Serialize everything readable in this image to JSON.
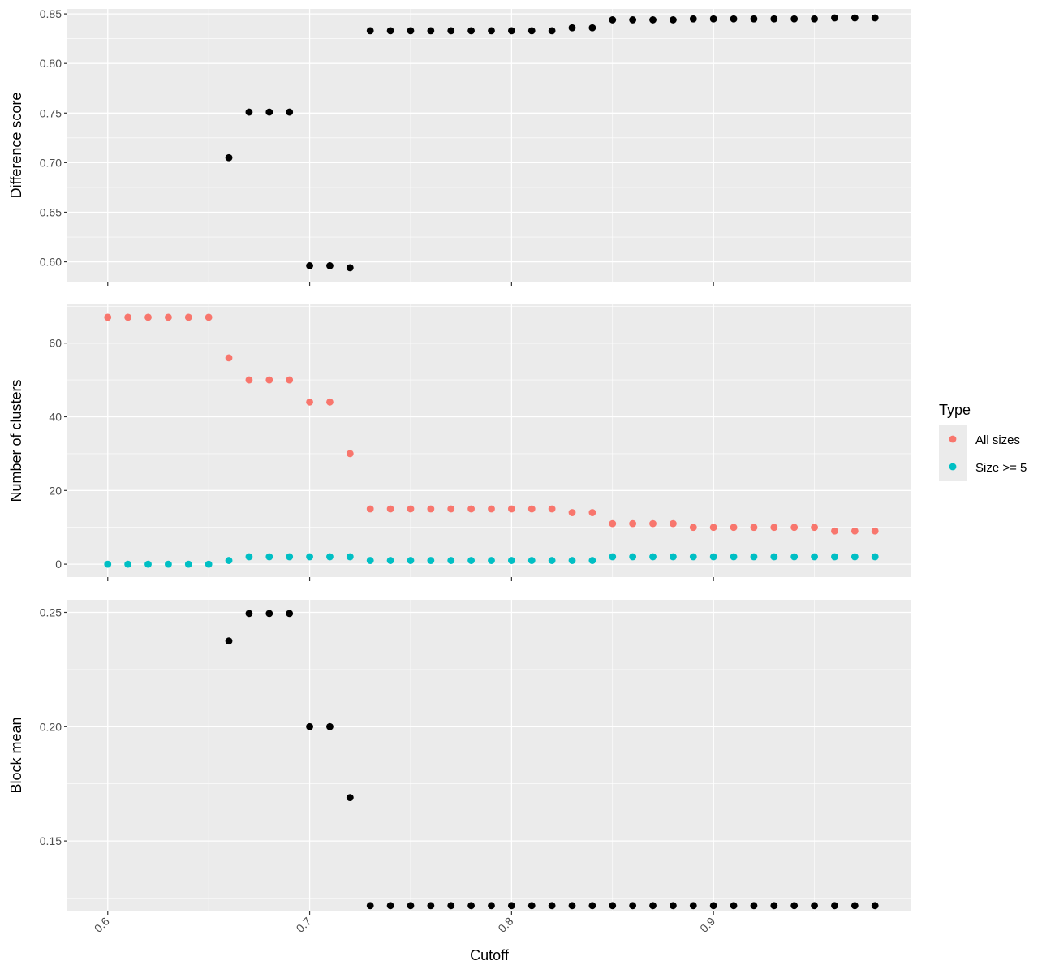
{
  "chart_data": {
    "type": "scatter",
    "x_label": "Cutoff",
    "x_range": [
      0.58,
      0.998
    ],
    "x_ticks": [
      0.6,
      0.7,
      0.8,
      0.9
    ],
    "x_tick_labels": [
      "0.6",
      "0.7",
      "0.8",
      "0.9"
    ],
    "legend": {
      "title": "Type",
      "position": "right",
      "entries": [
        {
          "label": "All sizes",
          "color": "#F8766D"
        },
        {
          "label": "Size >= 5",
          "color": "#00BFC4"
        }
      ]
    },
    "panels": [
      {
        "id": "difference",
        "ylabel": "Difference score",
        "ylim": [
          0.58,
          0.855
        ],
        "y_ticks": [
          0.6,
          0.65,
          0.7,
          0.75,
          0.8,
          0.85
        ],
        "y_tick_labels": [
          "0.60",
          "0.65",
          "0.70",
          "0.75",
          "0.80",
          "0.85"
        ],
        "series": [
          {
            "color": "#000000",
            "points": [
              [
                0.66,
                0.705
              ],
              [
                0.67,
                0.751
              ],
              [
                0.68,
                0.751
              ],
              [
                0.69,
                0.751
              ],
              [
                0.7,
                0.596
              ],
              [
                0.71,
                0.596
              ],
              [
                0.72,
                0.594
              ],
              [
                0.73,
                0.833
              ],
              [
                0.74,
                0.833
              ],
              [
                0.75,
                0.833
              ],
              [
                0.76,
                0.833
              ],
              [
                0.77,
                0.833
              ],
              [
                0.78,
                0.833
              ],
              [
                0.79,
                0.833
              ],
              [
                0.8,
                0.833
              ],
              [
                0.81,
                0.833
              ],
              [
                0.82,
                0.833
              ],
              [
                0.83,
                0.836
              ],
              [
                0.84,
                0.836
              ],
              [
                0.85,
                0.844
              ],
              [
                0.86,
                0.844
              ],
              [
                0.87,
                0.844
              ],
              [
                0.88,
                0.844
              ],
              [
                0.89,
                0.845
              ],
              [
                0.9,
                0.845
              ],
              [
                0.91,
                0.845
              ],
              [
                0.92,
                0.845
              ],
              [
                0.93,
                0.845
              ],
              [
                0.94,
                0.845
              ],
              [
                0.95,
                0.845
              ],
              [
                0.96,
                0.846
              ],
              [
                0.97,
                0.846
              ],
              [
                0.98,
                0.846
              ]
            ]
          }
        ]
      },
      {
        "id": "clusters",
        "ylabel": "Number of clusters",
        "ylim": [
          -3.5,
          70.5
        ],
        "y_ticks": [
          0,
          20,
          40,
          60
        ],
        "y_tick_labels": [
          "0",
          "20",
          "40",
          "60"
        ],
        "series": [
          {
            "name": "All sizes",
            "color": "#F8766D",
            "points": [
              [
                0.6,
                67
              ],
              [
                0.61,
                67
              ],
              [
                0.62,
                67
              ],
              [
                0.63,
                67
              ],
              [
                0.64,
                67
              ],
              [
                0.65,
                67
              ],
              [
                0.66,
                56
              ],
              [
                0.67,
                50
              ],
              [
                0.68,
                50
              ],
              [
                0.69,
                50
              ],
              [
                0.7,
                44
              ],
              [
                0.71,
                44
              ],
              [
                0.72,
                30
              ],
              [
                0.73,
                15
              ],
              [
                0.74,
                15
              ],
              [
                0.75,
                15
              ],
              [
                0.76,
                15
              ],
              [
                0.77,
                15
              ],
              [
                0.78,
                15
              ],
              [
                0.79,
                15
              ],
              [
                0.8,
                15
              ],
              [
                0.81,
                15
              ],
              [
                0.82,
                15
              ],
              [
                0.83,
                14
              ],
              [
                0.84,
                14
              ],
              [
                0.85,
                11
              ],
              [
                0.86,
                11
              ],
              [
                0.87,
                11
              ],
              [
                0.88,
                11
              ],
              [
                0.89,
                10
              ],
              [
                0.9,
                10
              ],
              [
                0.91,
                10
              ],
              [
                0.92,
                10
              ],
              [
                0.93,
                10
              ],
              [
                0.94,
                10
              ],
              [
                0.95,
                10
              ],
              [
                0.96,
                9
              ],
              [
                0.97,
                9
              ],
              [
                0.98,
                9
              ]
            ]
          },
          {
            "name": "Size >= 5",
            "color": "#00BFC4",
            "points": [
              [
                0.6,
                0
              ],
              [
                0.61,
                0
              ],
              [
                0.62,
                0
              ],
              [
                0.63,
                0
              ],
              [
                0.64,
                0
              ],
              [
                0.65,
                0
              ],
              [
                0.66,
                1
              ],
              [
                0.67,
                2
              ],
              [
                0.68,
                2
              ],
              [
                0.69,
                2
              ],
              [
                0.7,
                2
              ],
              [
                0.71,
                2
              ],
              [
                0.72,
                2
              ],
              [
                0.73,
                1
              ],
              [
                0.74,
                1
              ],
              [
                0.75,
                1
              ],
              [
                0.76,
                1
              ],
              [
                0.77,
                1
              ],
              [
                0.78,
                1
              ],
              [
                0.79,
                1
              ],
              [
                0.8,
                1
              ],
              [
                0.81,
                1
              ],
              [
                0.82,
                1
              ],
              [
                0.83,
                1
              ],
              [
                0.84,
                1
              ],
              [
                0.85,
                2
              ],
              [
                0.86,
                2
              ],
              [
                0.87,
                2
              ],
              [
                0.88,
                2
              ],
              [
                0.89,
                2
              ],
              [
                0.9,
                2
              ],
              [
                0.91,
                2
              ],
              [
                0.92,
                2
              ],
              [
                0.93,
                2
              ],
              [
                0.94,
                2
              ],
              [
                0.95,
                2
              ],
              [
                0.96,
                2
              ],
              [
                0.97,
                2
              ],
              [
                0.98,
                2
              ]
            ]
          }
        ]
      },
      {
        "id": "block",
        "ylabel": "Block mean",
        "ylim": [
          0.1195,
          0.2555
        ],
        "y_ticks": [
          0.15,
          0.2,
          0.25
        ],
        "y_tick_labels": [
          "0.15",
          "0.20",
          "0.25"
        ],
        "series": [
          {
            "color": "#000000",
            "points": [
              [
                0.66,
                0.2375
              ],
              [
                0.67,
                0.2495
              ],
              [
                0.68,
                0.2495
              ],
              [
                0.69,
                0.2495
              ],
              [
                0.7,
                0.2
              ],
              [
                0.71,
                0.2
              ],
              [
                0.72,
                0.169
              ],
              [
                0.73,
                0.1217
              ],
              [
                0.74,
                0.1217
              ],
              [
                0.75,
                0.1217
              ],
              [
                0.76,
                0.1217
              ],
              [
                0.77,
                0.1217
              ],
              [
                0.78,
                0.1217
              ],
              [
                0.79,
                0.1217
              ],
              [
                0.8,
                0.1217
              ],
              [
                0.81,
                0.1217
              ],
              [
                0.82,
                0.1217
              ],
              [
                0.83,
                0.1217
              ],
              [
                0.84,
                0.1217
              ],
              [
                0.85,
                0.1217
              ],
              [
                0.86,
                0.1217
              ],
              [
                0.87,
                0.1217
              ],
              [
                0.88,
                0.1217
              ],
              [
                0.89,
                0.1217
              ],
              [
                0.9,
                0.1217
              ],
              [
                0.91,
                0.1217
              ],
              [
                0.92,
                0.1217
              ],
              [
                0.93,
                0.1217
              ],
              [
                0.94,
                0.1217
              ],
              [
                0.95,
                0.1217
              ],
              [
                0.96,
                0.1217
              ],
              [
                0.97,
                0.1217
              ],
              [
                0.98,
                0.1217
              ]
            ]
          }
        ]
      }
    ]
  }
}
